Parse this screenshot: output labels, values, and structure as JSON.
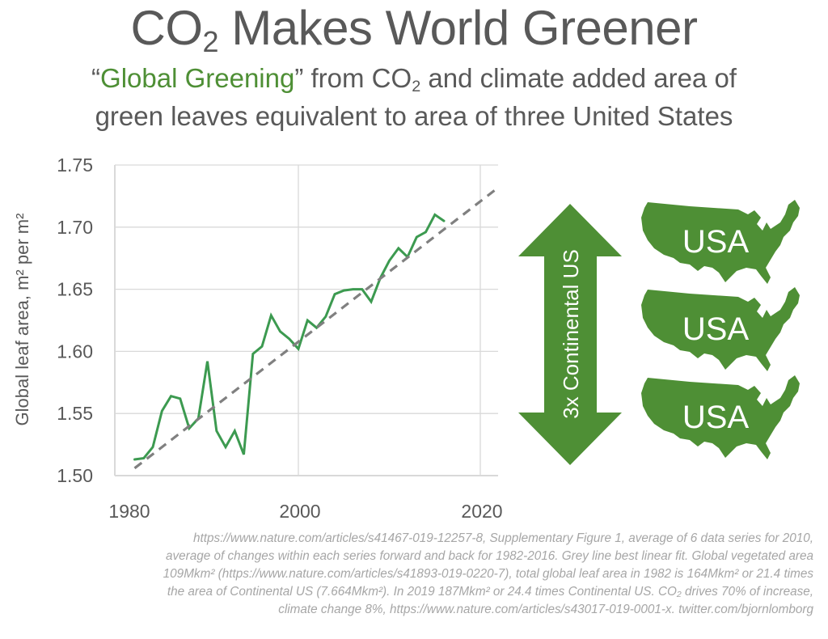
{
  "header": {
    "title_pre": "CO",
    "title_sub": "2",
    "title_post": " Makes World Greener",
    "subtitle_open_quote": "“",
    "subtitle_highlight": "Global Greening",
    "subtitle_line1_rest_a": "” from CO",
    "subtitle_line1_sub": "2",
    "subtitle_line1_rest_b": " and climate added area of",
    "subtitle_line2": "green leaves equivalent to area of three United States"
  },
  "colors": {
    "text": "#595959",
    "green_line": "#3c9a50",
    "trend_line": "#808080",
    "brand_green": "#4e8f35",
    "grid": "#d9d9d9",
    "footnote": "#a6a6a6"
  },
  "chart_data": {
    "type": "line",
    "title": "",
    "xlabel": "",
    "ylabel": "Global leaf area, m² per m²",
    "xlim": [
      1980,
      2022
    ],
    "ylim": [
      1.5,
      1.75
    ],
    "x_ticks": [
      1980,
      2000,
      2020
    ],
    "x_tick_labels": [
      "1980",
      "2000",
      "2020"
    ],
    "y_ticks": [
      1.5,
      1.55,
      1.6,
      1.65,
      1.7,
      1.75
    ],
    "y_tick_labels": [
      "1.50",
      "1.55",
      "1.60",
      "1.65",
      "1.70",
      "1.75"
    ],
    "grid": true,
    "series": [
      {
        "name": "Global leaf area",
        "style": "solid",
        "x": [
          1982,
          1983,
          1984,
          1985,
          1986,
          1987,
          1988,
          1989,
          1990,
          1991,
          1992,
          1993,
          1994,
          1995,
          1996,
          1997,
          1998,
          1999,
          2000,
          2001,
          2002,
          2003,
          2004,
          2005,
          2006,
          2007,
          2008,
          2009,
          2010,
          2011,
          2012,
          2013,
          2014,
          2015,
          2016
        ],
        "y": [
          1.513,
          1.514,
          1.523,
          1.552,
          1.564,
          1.562,
          1.538,
          1.546,
          1.592,
          1.536,
          1.523,
          1.536,
          1.517,
          1.598,
          1.604,
          1.629,
          1.616,
          1.61,
          1.602,
          1.625,
          1.619,
          1.628,
          1.646,
          1.649,
          1.65,
          1.65,
          1.64,
          1.659,
          1.673,
          1.683,
          1.676,
          1.692,
          1.696,
          1.71,
          1.705
        ]
      },
      {
        "name": "Best linear fit",
        "style": "dashed",
        "x": [
          1982,
          2022
        ],
        "y": [
          1.506,
          1.732
        ]
      }
    ]
  },
  "graphic": {
    "arrow_label": "3x Continental US",
    "maps": [
      "USA",
      "USA",
      "USA"
    ]
  },
  "footnote": {
    "lines": [
      "https://www.nature.com/articles/s41467-019-12257-8, Supplementary Figure 1, average of 6 data series for 2010,",
      "average of changes within each series forward and back for 1982-2016. Grey line best linear fit. Global vegetated area",
      "109Mkm² (https://www.nature.com/articles/s41893-019-0220-7), total global leaf area in 1982 is 164Mkm² or 21.4 times",
      "the area of Continental US (7.664Mkm²). In 2019 187Mkm² or 24.4 times Continental US. CO₂ drives 70% of increase,",
      "climate change 8%, https://www.nature.com/articles/s43017-019-0001-x. twitter.com/bjornlomborg"
    ]
  }
}
